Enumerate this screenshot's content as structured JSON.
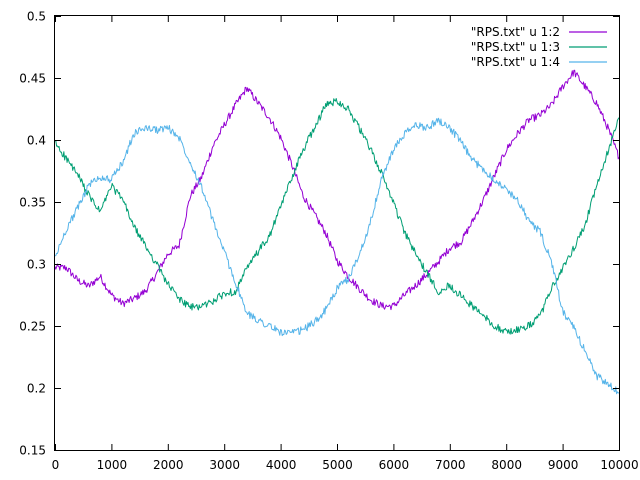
{
  "chart_data": {
    "type": "line",
    "title": "",
    "xlabel": "",
    "ylabel": "",
    "xlim": [
      0,
      10000
    ],
    "ylim": [
      0.15,
      0.5
    ],
    "xticks": [
      0,
      1000,
      2000,
      3000,
      4000,
      5000,
      6000,
      7000,
      8000,
      9000,
      10000
    ],
    "yticks": [
      0.15,
      0.2,
      0.25,
      0.3,
      0.35,
      0.4,
      0.45,
      0.5
    ],
    "xtick_labels": [
      "0",
      "1000",
      "2000",
      "3000",
      "4000",
      "5000",
      "6000",
      "7000",
      "8000",
      "9000",
      "10000"
    ],
    "ytick_labels": [
      "0.15",
      "0.2",
      "0.25",
      "0.3",
      "0.35",
      "0.4",
      "0.45",
      "0.5"
    ],
    "grid": false,
    "legend_position": "top-right",
    "x": [
      0,
      200,
      400,
      600,
      800,
      1000,
      1200,
      1400,
      1600,
      1800,
      2000,
      2200,
      2400,
      2600,
      2800,
      3000,
      3200,
      3400,
      3600,
      3800,
      4000,
      4200,
      4400,
      4600,
      4800,
      5000,
      5200,
      5400,
      5600,
      5800,
      6000,
      6200,
      6400,
      6600,
      6800,
      7000,
      7200,
      7400,
      7600,
      7800,
      8000,
      8200,
      8400,
      8600,
      8800,
      9000,
      9200,
      9400,
      9600,
      9800,
      10000
    ],
    "series": [
      {
        "name": "\"RPS.txt\" u 1:2",
        "color": "#9400d3",
        "values": [
          0.297,
          0.297,
          0.287,
          0.282,
          0.29,
          0.275,
          0.268,
          0.272,
          0.278,
          0.292,
          0.308,
          0.315,
          0.355,
          0.37,
          0.395,
          0.412,
          0.428,
          0.442,
          0.43,
          0.418,
          0.402,
          0.38,
          0.355,
          0.34,
          0.325,
          0.303,
          0.29,
          0.28,
          0.271,
          0.266,
          0.266,
          0.275,
          0.283,
          0.292,
          0.302,
          0.313,
          0.318,
          0.334,
          0.352,
          0.372,
          0.392,
          0.405,
          0.416,
          0.42,
          0.428,
          0.443,
          0.455,
          0.443,
          0.43,
          0.41,
          0.386
        ]
      },
      {
        "name": "\"RPS.txt\" u 1:3",
        "color": "#009e73",
        "values": [
          0.398,
          0.385,
          0.372,
          0.355,
          0.342,
          0.363,
          0.352,
          0.33,
          0.315,
          0.3,
          0.284,
          0.272,
          0.265,
          0.266,
          0.27,
          0.276,
          0.278,
          0.296,
          0.31,
          0.322,
          0.346,
          0.37,
          0.392,
          0.41,
          0.428,
          0.432,
          0.425,
          0.409,
          0.392,
          0.372,
          0.35,
          0.325,
          0.308,
          0.292,
          0.278,
          0.283,
          0.274,
          0.266,
          0.258,
          0.25,
          0.245,
          0.247,
          0.25,
          0.258,
          0.28,
          0.296,
          0.313,
          0.332,
          0.362,
          0.39,
          0.418
        ]
      },
      {
        "name": "\"RPS.txt\" u 1:4",
        "color": "#56b4e9",
        "values": [
          0.305,
          0.328,
          0.345,
          0.364,
          0.37,
          0.368,
          0.382,
          0.405,
          0.41,
          0.408,
          0.41,
          0.402,
          0.382,
          0.362,
          0.335,
          0.31,
          0.285,
          0.26,
          0.255,
          0.25,
          0.245,
          0.244,
          0.247,
          0.253,
          0.263,
          0.28,
          0.288,
          0.308,
          0.335,
          0.37,
          0.392,
          0.405,
          0.412,
          0.41,
          0.416,
          0.41,
          0.398,
          0.384,
          0.376,
          0.368,
          0.36,
          0.352,
          0.335,
          0.326,
          0.302,
          0.262,
          0.248,
          0.23,
          0.21,
          0.203,
          0.196
        ]
      }
    ]
  }
}
